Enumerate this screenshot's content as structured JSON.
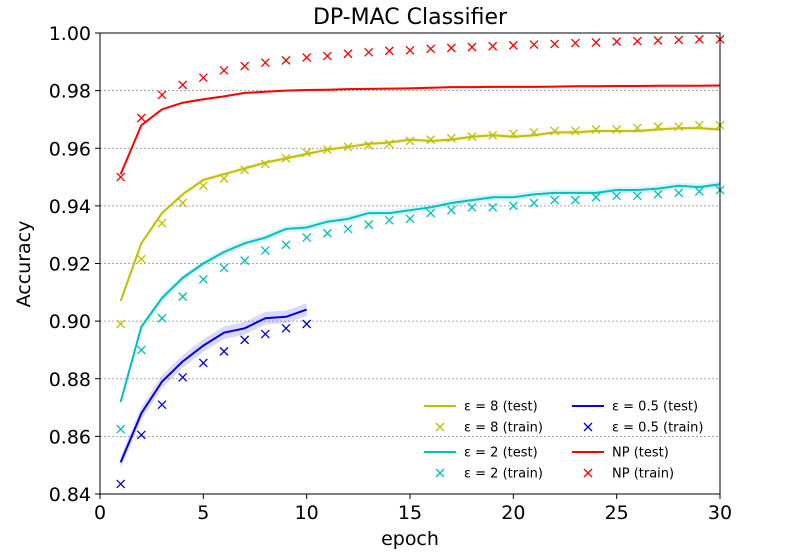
{
  "chart_data": {
    "type": "line",
    "title": "DP-MAC Classifier",
    "xlabel": "epoch",
    "ylabel": "Accuracy",
    "xlim": [
      0,
      30
    ],
    "ylim": [
      0.84,
      1.0
    ],
    "xticks": [
      0,
      5,
      10,
      15,
      20,
      25,
      30
    ],
    "yticks": [
      0.84,
      0.86,
      0.88,
      0.9,
      0.92,
      0.94,
      0.96,
      0.98,
      1.0
    ],
    "ytick_labels": [
      "0.84",
      "0.86",
      "0.88",
      "0.90",
      "0.92",
      "0.94",
      "0.96",
      "0.98",
      "1.00"
    ],
    "grid": "horizontal dashed",
    "legend_position": "lower-right",
    "series": [
      {
        "name": "ε = 8",
        "eps_value": "8",
        "color": "#bfbf00",
        "test_label": "ε = 8 (test)",
        "train_label": "ε = 8 (train)",
        "epochs": [
          1,
          2,
          3,
          4,
          5,
          6,
          7,
          8,
          9,
          10,
          11,
          12,
          13,
          14,
          15,
          16,
          17,
          18,
          19,
          20,
          21,
          22,
          23,
          24,
          25,
          26,
          27,
          28,
          29,
          30
        ],
        "test": [
          0.907,
          0.927,
          0.9375,
          0.944,
          0.949,
          0.951,
          0.953,
          0.955,
          0.9565,
          0.958,
          0.9595,
          0.9605,
          0.9615,
          0.962,
          0.963,
          0.9625,
          0.963,
          0.964,
          0.9645,
          0.964,
          0.9645,
          0.9655,
          0.9655,
          0.966,
          0.966,
          0.966,
          0.9665,
          0.967,
          0.967,
          0.9665
        ],
        "band": 0.0008,
        "train": [
          0.899,
          0.9215,
          0.934,
          0.941,
          0.947,
          0.9495,
          0.9525,
          0.9545,
          0.9565,
          0.9585,
          0.9595,
          0.9605,
          0.961,
          0.9615,
          0.9625,
          0.963,
          0.9635,
          0.964,
          0.9645,
          0.965,
          0.9655,
          0.966,
          0.966,
          0.9665,
          0.9665,
          0.967,
          0.9675,
          0.9675,
          0.968,
          0.968
        ]
      },
      {
        "name": "ε = 2",
        "eps_value": "2",
        "color": "#00bfbf",
        "test_label": "ε = 2 (test)",
        "train_label": "ε = 2 (train)",
        "epochs": [
          1,
          2,
          3,
          4,
          5,
          6,
          7,
          8,
          9,
          10,
          11,
          12,
          13,
          14,
          15,
          16,
          17,
          18,
          19,
          20,
          21,
          22,
          23,
          24,
          25,
          26,
          27,
          28,
          29,
          30
        ],
        "test": [
          0.872,
          0.898,
          0.908,
          0.915,
          0.92,
          0.924,
          0.927,
          0.929,
          0.932,
          0.9325,
          0.9345,
          0.9355,
          0.9375,
          0.9375,
          0.9385,
          0.9395,
          0.941,
          0.942,
          0.943,
          0.943,
          0.944,
          0.9445,
          0.9445,
          0.9445,
          0.9455,
          0.9455,
          0.946,
          0.947,
          0.9465,
          0.9475
        ],
        "band": 0.0012,
        "train": [
          0.8625,
          0.89,
          0.901,
          0.9085,
          0.9145,
          0.9185,
          0.921,
          0.9245,
          0.9265,
          0.929,
          0.9305,
          0.932,
          0.9335,
          0.935,
          0.9355,
          0.9375,
          0.9385,
          0.9395,
          0.9395,
          0.94,
          0.941,
          0.942,
          0.942,
          0.943,
          0.9435,
          0.9435,
          0.944,
          0.9445,
          0.945,
          0.9455
        ]
      },
      {
        "name": "ε = 0.5",
        "eps_value": "0.5",
        "color": "#0000e6",
        "test_label": "ε = 0.5 (test)",
        "train_label": "ε = 0.5 (train)",
        "epochs": [
          1,
          2,
          3,
          4,
          5,
          6,
          7,
          8,
          9,
          10
        ],
        "test": [
          0.851,
          0.868,
          0.879,
          0.886,
          0.8915,
          0.896,
          0.8975,
          0.901,
          0.9015,
          0.904
        ],
        "band": 0.0022,
        "train": [
          0.8435,
          0.8605,
          0.871,
          0.8805,
          0.8855,
          0.8895,
          0.8935,
          0.8955,
          0.8975,
          0.899
        ]
      },
      {
        "name": "NP",
        "eps_value": "",
        "color": "#ff0000",
        "test_label": "NP (test)",
        "train_label": "NP (train)",
        "epochs": [
          1,
          2,
          3,
          4,
          5,
          6,
          7,
          8,
          9,
          10,
          11,
          12,
          13,
          14,
          15,
          16,
          17,
          18,
          19,
          20,
          21,
          22,
          23,
          24,
          25,
          26,
          27,
          28,
          29,
          30
        ],
        "test": [
          0.951,
          0.968,
          0.9735,
          0.9758,
          0.977,
          0.978,
          0.9792,
          0.9796,
          0.98,
          0.9802,
          0.9803,
          0.9805,
          0.9806,
          0.9807,
          0.9808,
          0.981,
          0.9812,
          0.9812,
          0.9813,
          0.9813,
          0.9813,
          0.9814,
          0.9815,
          0.9815,
          0.9816,
          0.9816,
          0.9817,
          0.9817,
          0.9817,
          0.9818
        ],
        "band": 0.0004,
        "train": [
          0.95,
          0.9705,
          0.9785,
          0.982,
          0.9845,
          0.987,
          0.9885,
          0.9897,
          0.9905,
          0.9915,
          0.992,
          0.9928,
          0.9933,
          0.9938,
          0.994,
          0.9945,
          0.9948,
          0.9951,
          0.9954,
          0.9957,
          0.996,
          0.9962,
          0.9965,
          0.9967,
          0.997,
          0.9972,
          0.9974,
          0.9976,
          0.9978,
          0.9978
        ]
      }
    ]
  }
}
